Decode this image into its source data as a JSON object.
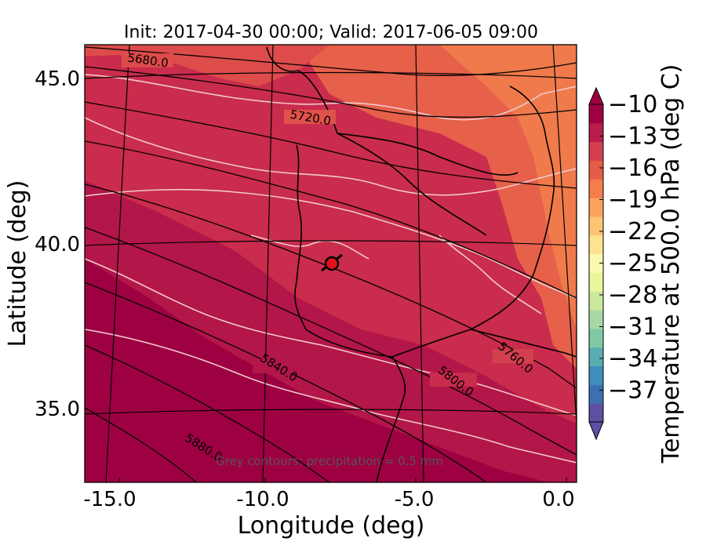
{
  "map": {
    "title": "Init: 2017-04-30 00:00; Valid: 2017-06-05 09:00",
    "xlabel": "Longitude (deg)",
    "ylabel": "Latitude (deg)",
    "x_ticks": [
      "-15.0",
      "-10.0",
      "-5.0",
      "0.0"
    ],
    "y_ticks": [
      "45.0",
      "40.0",
      "35.0"
    ],
    "note": "Grey contours: precipitation = 0.5 mm",
    "colorbar": {
      "label": "Temperature at 500.0 hPa (deg C)",
      "ticks": [
        "−10",
        "−13",
        "−16",
        "−19",
        "−22",
        "−25",
        "−28",
        "−31",
        "−34",
        "−37"
      ],
      "colors": [
        "#5e4fa2",
        "#3d70b0",
        "#3e8ebf",
        "#5aaeb1",
        "#80c9a4",
        "#a7d9a4",
        "#cbe99d",
        "#eaf69e",
        "#fcf8b0",
        "#fee290",
        "#fdc574",
        "#fba35c",
        "#f47d4b",
        "#e65c47",
        "#d2404e",
        "#b91d4b",
        "#9e0142"
      ],
      "color_names": [
        "Spectral colormap, blue-violet (-37) to dark red (-10)"
      ]
    },
    "height_contours": [
      "5680.0",
      "5720.0",
      "5760.0",
      "5800.0",
      "5840.0",
      "5880.0"
    ],
    "marker": {
      "lon": -7.7,
      "lat": 39.3,
      "color": "#e8101a"
    },
    "field_colors": {
      "warm": "#9e0142",
      "mid": "#d2404e",
      "cool": "#f47d4b"
    }
  }
}
